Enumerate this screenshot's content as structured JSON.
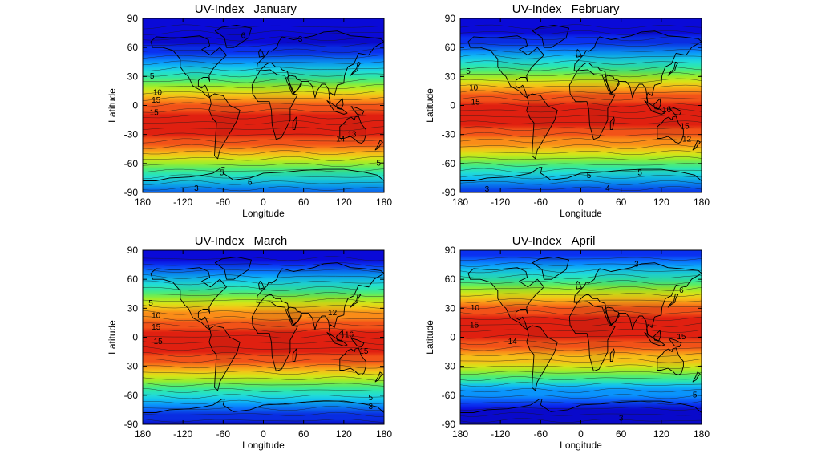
{
  "figure": {
    "panels": [
      {
        "index_label": "UV-Index",
        "month": "January",
        "sun_lat": -20
      },
      {
        "index_label": "UV-Index",
        "month": "February",
        "sun_lat": -12
      },
      {
        "index_label": "UV-Index",
        "month": "March",
        "sun_lat": -3
      },
      {
        "index_label": "UV-Index",
        "month": "April",
        "sun_lat": 9
      }
    ],
    "xlabel": "Longitude",
    "ylabel": "Latitude",
    "xticks": [
      "180",
      "-120",
      "-60",
      "0",
      "60",
      "120",
      "180"
    ],
    "yticks": [
      "90",
      "60",
      "30",
      "0",
      "-30",
      "-60",
      "-90"
    ],
    "xrange": [
      -180,
      180
    ],
    "yrange": [
      -90,
      90
    ]
  },
  "contour_labels": [
    [
      {
        "text": "6",
        "lon": -30,
        "lat": 72
      },
      {
        "text": "3",
        "lon": 55,
        "lat": 68
      },
      {
        "text": "5",
        "lon": -166,
        "lat": 30
      },
      {
        "text": "10",
        "lon": -158,
        "lat": 13
      },
      {
        "text": "15",
        "lon": -160,
        "lat": 5
      },
      {
        "text": "15",
        "lon": -163,
        "lat": -8
      },
      {
        "text": "14",
        "lon": 115,
        "lat": -35
      },
      {
        "text": "13",
        "lon": 132,
        "lat": -30
      },
      {
        "text": "5",
        "lon": -62,
        "lat": -70
      },
      {
        "text": "6",
        "lon": -20,
        "lat": -80
      },
      {
        "text": "3",
        "lon": -100,
        "lat": -86
      },
      {
        "text": "5",
        "lon": 172,
        "lat": -60
      }
    ],
    [
      {
        "text": "5",
        "lon": -168,
        "lat": 35
      },
      {
        "text": "10",
        "lon": -160,
        "lat": 18
      },
      {
        "text": "15",
        "lon": -157,
        "lat": 3
      },
      {
        "text": "16",
        "lon": 128,
        "lat": -5
      },
      {
        "text": "15",
        "lon": 155,
        "lat": -22
      },
      {
        "text": "12",
        "lon": 158,
        "lat": -35
      },
      {
        "text": "5",
        "lon": 12,
        "lat": -73
      },
      {
        "text": "5",
        "lon": 88,
        "lat": -70
      },
      {
        "text": "3",
        "lon": -140,
        "lat": -87
      },
      {
        "text": "4",
        "lon": 40,
        "lat": -86
      },
      {
        "text": "5",
        "lon": -188,
        "lat": -73
      }
    ],
    [
      {
        "text": "5",
        "lon": -168,
        "lat": 35
      },
      {
        "text": "10",
        "lon": -160,
        "lat": 22
      },
      {
        "text": "15",
        "lon": -160,
        "lat": 10
      },
      {
        "text": "15",
        "lon": -157,
        "lat": -5
      },
      {
        "text": "12",
        "lon": 103,
        "lat": 25
      },
      {
        "text": "16",
        "lon": 128,
        "lat": 2
      },
      {
        "text": "15",
        "lon": 150,
        "lat": -15
      },
      {
        "text": "5",
        "lon": 160,
        "lat": -63
      },
      {
        "text": "3",
        "lon": 160,
        "lat": -72
      }
    ],
    [
      {
        "text": "3",
        "lon": 83,
        "lat": 75
      },
      {
        "text": "6",
        "lon": 150,
        "lat": 48
      },
      {
        "text": "10",
        "lon": -158,
        "lat": 30
      },
      {
        "text": "15",
        "lon": -159,
        "lat": 12
      },
      {
        "text": "14",
        "lon": -102,
        "lat": -5
      },
      {
        "text": "15",
        "lon": 150,
        "lat": 0
      },
      {
        "text": "3",
        "lon": 60,
        "lat": -84
      },
      {
        "text": "5",
        "lon": 170,
        "lat": -60
      }
    ]
  ],
  "colorscale": [
    "#0a0ad8",
    "#0a30f0",
    "#0a62fa",
    "#0a94fb",
    "#12c0f0",
    "#22dcd6",
    "#2ee7aa",
    "#57ec6a",
    "#9bed2c",
    "#d6e418",
    "#f5c018",
    "#fa8c18",
    "#f25218",
    "#e02010"
  ],
  "land_colors": {
    "fill": "rgba(0,0,0,0.06)"
  }
}
